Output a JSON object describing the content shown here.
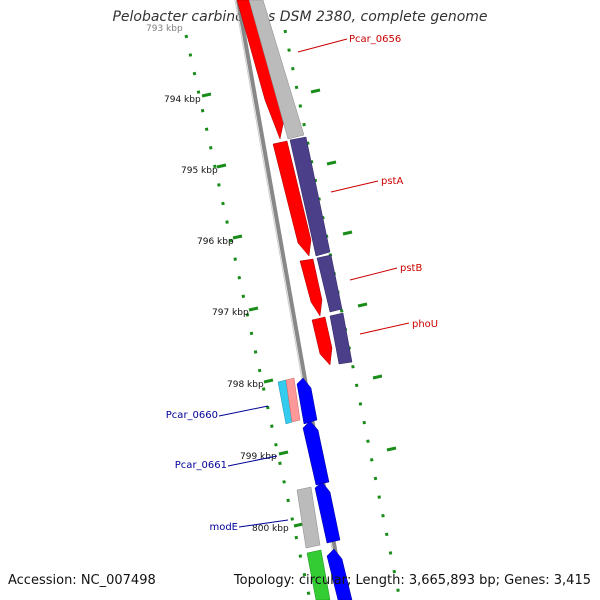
{
  "title": "Pelobacter carbinolicus DSM 2380, complete genome",
  "footer": {
    "accession": "Accession: NC_007498",
    "summary": "Topology: circular; Length: 3,665,893 bp; Genes: 3,415"
  },
  "ruler": {
    "labels": [
      "793 kbp",
      "794 kbp",
      "795 kbp",
      "796 kbp",
      "797 kbp",
      "798 kbp",
      "799 kbp",
      "800 kbp"
    ]
  },
  "gene_labels": [
    {
      "text": "Pcar_0656",
      "color": "#cc0000"
    },
    {
      "text": "pstA",
      "color": "#cc0000"
    },
    {
      "text": "pstB",
      "color": "#cc0000"
    },
    {
      "text": "phoU",
      "color": "#cc0000"
    },
    {
      "text": "Pcar_0660",
      "color": "#000099"
    },
    {
      "text": "Pcar_0661",
      "color": "#000099"
    },
    {
      "text": "modE",
      "color": "#000099"
    }
  ],
  "colors": {
    "cds_forward": "#ff0000",
    "cds_reverse": "#0000ff",
    "cog_purple": "#4b3f8a",
    "cog_gray": "#bbbbbb",
    "cog_cyan": "#33ccee",
    "cog_pink": "#ff9999",
    "cog_green": "#33cc33",
    "backbone": "#888888",
    "gc_skew": "#1a8c1a"
  }
}
